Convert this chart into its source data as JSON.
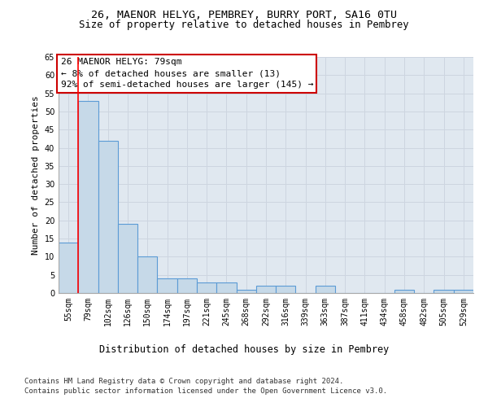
{
  "title_line1": "26, MAENOR HELYG, PEMBREY, BURRY PORT, SA16 0TU",
  "title_line2": "Size of property relative to detached houses in Pembrey",
  "xlabel": "Distribution of detached houses by size in Pembrey",
  "ylabel": "Number of detached properties",
  "categories": [
    "55sqm",
    "79sqm",
    "102sqm",
    "126sqm",
    "150sqm",
    "174sqm",
    "197sqm",
    "221sqm",
    "245sqm",
    "268sqm",
    "292sqm",
    "316sqm",
    "339sqm",
    "363sqm",
    "387sqm",
    "411sqm",
    "434sqm",
    "458sqm",
    "482sqm",
    "505sqm",
    "529sqm"
  ],
  "values": [
    14,
    53,
    42,
    19,
    10,
    4,
    4,
    3,
    3,
    1,
    2,
    2,
    0,
    2,
    0,
    0,
    0,
    1,
    0,
    1,
    1
  ],
  "bar_color": "#c6d9e8",
  "bar_edge_color": "#5b9bd5",
  "red_line_x": 0.5,
  "annotation_line1": "26 MAENOR HELYG: 79sqm",
  "annotation_line2": "← 8% of detached houses are smaller (13)",
  "annotation_line3": "92% of semi-detached houses are larger (145) →",
  "annotation_edge_color": "#cc0000",
  "ylim": [
    0,
    65
  ],
  "yticks": [
    0,
    5,
    10,
    15,
    20,
    25,
    30,
    35,
    40,
    45,
    50,
    55,
    60,
    65
  ],
  "grid_color": "#cdd5e0",
  "background_color": "#e0e8f0",
  "footer_line1": "Contains HM Land Registry data © Crown copyright and database right 2024.",
  "footer_line2": "Contains public sector information licensed under the Open Government Licence v3.0.",
  "title_fontsize": 9.5,
  "subtitle_fontsize": 8.8,
  "ylabel_fontsize": 8,
  "xlabel_fontsize": 8.5,
  "tick_fontsize": 7,
  "annotation_fontsize": 8,
  "footer_fontsize": 6.5
}
